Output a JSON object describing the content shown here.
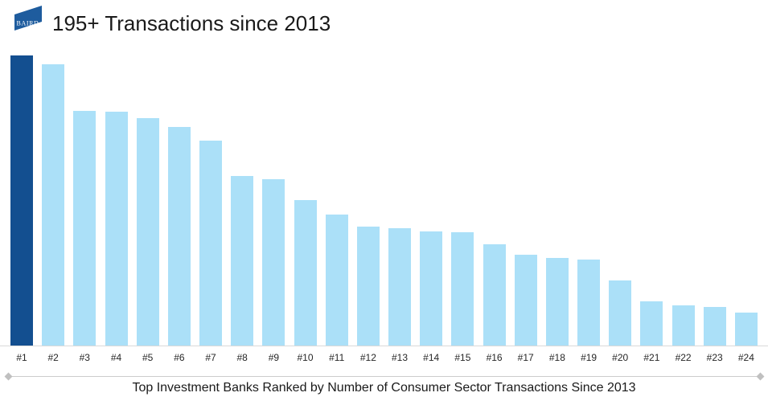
{
  "header": {
    "logo": {
      "text": "BAIRD",
      "background_color": "#1E5C9E",
      "text_color": "#FFFFFF"
    }
  },
  "chart_data": {
    "type": "bar",
    "title": "195+ Transactions since 2013",
    "caption": "Top Investment Banks Ranked by Number of Consumer Sector Transactions Since 2013",
    "categories": [
      "#1",
      "#2",
      "#3",
      "#4",
      "#5",
      "#6",
      "#7",
      "#8",
      "#9",
      "#10",
      "#11",
      "#12",
      "#13",
      "#14",
      "#15",
      "#16",
      "#17",
      "#18",
      "#19",
      "#20",
      "#21",
      "#22",
      "#23",
      "#24"
    ],
    "values": [
      195,
      189,
      158,
      157,
      153,
      147,
      138,
      114,
      112,
      98,
      88,
      80,
      79,
      77,
      76,
      68,
      61,
      59,
      58,
      44,
      30,
      27,
      26,
      22
    ],
    "highlight_index": 0,
    "highlight_color": "#134F90",
    "bar_color": "#ABE0F8",
    "axis_line_color": "#D9D9D9",
    "ylim": [
      0,
      195
    ],
    "grid": "off",
    "legend": "none",
    "y_axis_labels": "hidden"
  }
}
